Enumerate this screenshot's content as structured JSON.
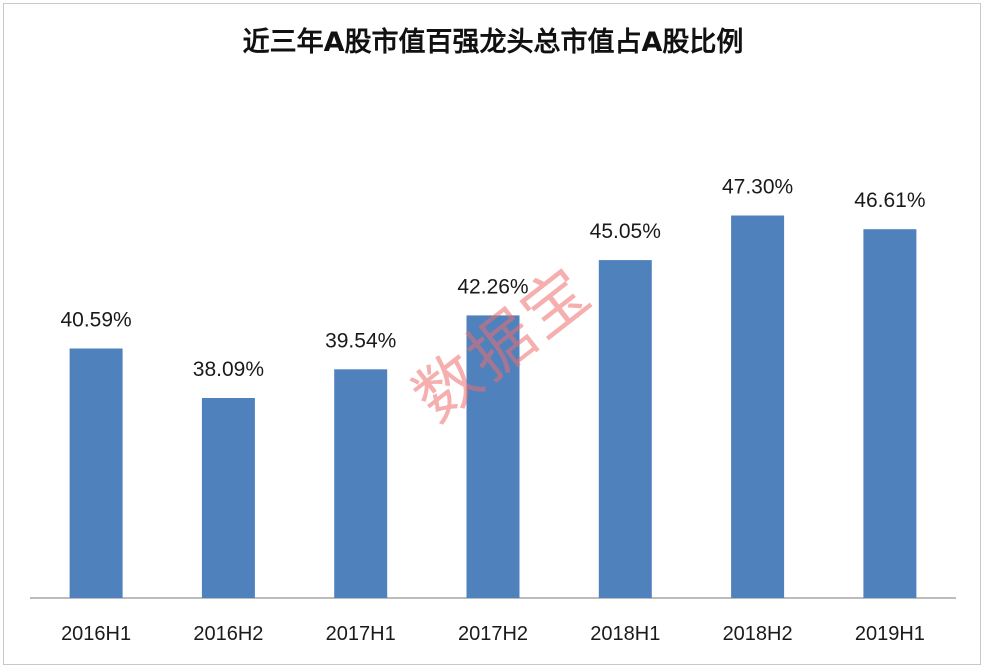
{
  "chart_data": {
    "type": "bar",
    "title": "近三年A股市值百强龙头总市值占A股比例",
    "categories": [
      "2016H1",
      "2016H2",
      "2017H1",
      "2017H2",
      "2018H1",
      "2018H2",
      "2019H1"
    ],
    "values": [
      40.59,
      38.09,
      39.54,
      42.26,
      45.05,
      47.3,
      46.61
    ],
    "data_labels": [
      "40.59%",
      "38.09%",
      "39.54%",
      "42.26%",
      "45.05%",
      "47.30%",
      "46.61%"
    ],
    "unit": "%",
    "xlabel": "",
    "ylabel": "",
    "ylim": [
      28,
      50
    ],
    "grid": false,
    "legend": "none",
    "y_axis_visible": false
  },
  "colors": {
    "bar": "#4f81bd",
    "axis": "#a6a6a6",
    "frame": "#c8c8c8"
  },
  "watermark": "数据宝"
}
